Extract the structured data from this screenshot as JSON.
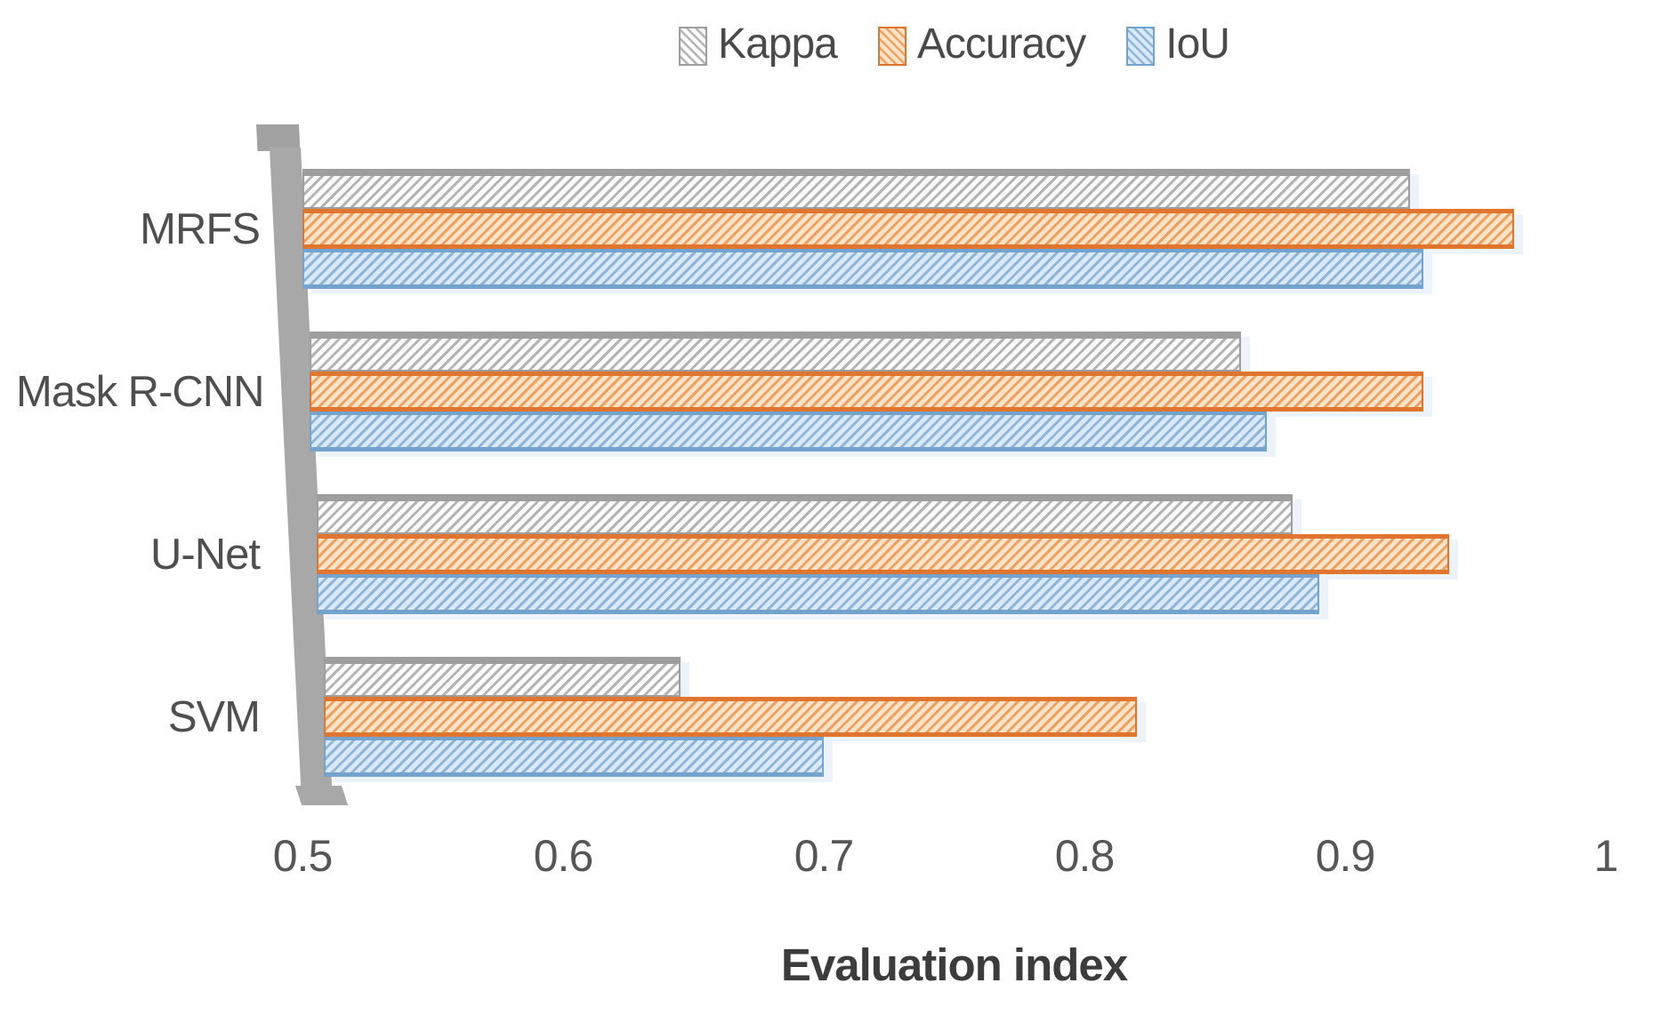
{
  "chart_data": {
    "type": "bar",
    "orientation": "horizontal",
    "title": "",
    "xlabel": "Evaluation index",
    "categories": [
      "MRFS",
      "Mask R-CNN",
      "U-Net",
      "SVM"
    ],
    "series": [
      {
        "name": "Kappa",
        "color": "#9e9e9e",
        "fill": "#fbfbfb",
        "stripe": "#b4b4b4",
        "values": [
          0.925,
          0.86,
          0.88,
          0.645
        ]
      },
      {
        "name": "Accuracy",
        "color": "#df752f",
        "fill": "#fce3c9",
        "stripe": "#f0a160",
        "values": [
          0.965,
          0.93,
          0.94,
          0.82
        ]
      },
      {
        "name": "IoU",
        "color": "#74a4ce",
        "fill": "#d9e9f7",
        "stripe": "#8fb5d9",
        "values": [
          0.93,
          0.87,
          0.89,
          0.7
        ]
      }
    ],
    "x_ticks": [
      0.5,
      0.6,
      0.7,
      0.8,
      0.9,
      1
    ],
    "xlim": [
      0.5,
      1
    ],
    "legend_position": "top",
    "grid": false,
    "bar_pattern": "diagonal-hatch"
  },
  "colors": {
    "spine": "#a8a8a8",
    "axis_text": "#565656",
    "title_text": "#3c3c3c"
  }
}
